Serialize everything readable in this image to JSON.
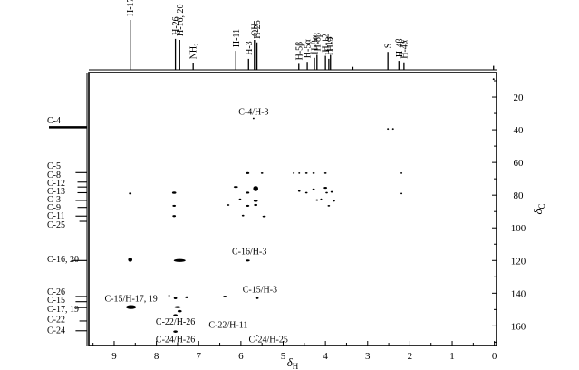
{
  "chart_data": {
    "type": "scatter",
    "title": "",
    "xlabel": "δH",
    "ylabel": "δC",
    "xlim": [
      9.6,
      -0.05
    ],
    "ylim": [
      5,
      172
    ],
    "x_ticks": [
      9,
      8,
      7,
      6,
      5,
      4,
      3,
      2,
      1,
      0
    ],
    "y_ticks": [
      20,
      40,
      60,
      80,
      100,
      120,
      140,
      160
    ],
    "grid": false,
    "h_projection_peaks": [
      {
        "x": 8.62,
        "h": 1.0,
        "label": "H-17, 19"
      },
      {
        "x": 7.55,
        "h": 0.62,
        "label": "H-26"
      },
      {
        "x": 7.45,
        "h": 0.6,
        "label": "H-16, 20"
      },
      {
        "x": 7.13,
        "h": 0.14,
        "label": "NH₂"
      },
      {
        "x": 6.12,
        "h": 0.38,
        "label": "H-11"
      },
      {
        "x": 5.82,
        "h": 0.22,
        "label": "H-3"
      },
      {
        "x": 5.68,
        "h": 0.6,
        "label": "OH"
      },
      {
        "x": 5.62,
        "h": 0.55,
        "label": "H-25"
      },
      {
        "x": 4.63,
        "h": 0.12,
        "label": "H-5β"
      },
      {
        "x": 4.43,
        "h": 0.16,
        "label": "H-5α"
      },
      {
        "x": 4.26,
        "h": 0.24,
        "label": "H-8α"
      },
      {
        "x": 4.2,
        "h": 0.3,
        "label": "H-8β"
      },
      {
        "x": 4.0,
        "h": 0.28,
        "label": "H-12"
      },
      {
        "x": 3.92,
        "h": 0.22,
        "label": "H-13"
      },
      {
        "x": 3.88,
        "h": 0.3,
        "label": "H-9"
      },
      {
        "x": 3.35,
        "h": 0.06,
        "label": ""
      },
      {
        "x": 2.52,
        "h": 0.36,
        "label": "S"
      },
      {
        "x": 2.26,
        "h": 0.18,
        "label": "H-4β"
      },
      {
        "x": 2.14,
        "h": 0.15,
        "label": "H-4α"
      },
      {
        "x": 0.02,
        "h": 0.08,
        "label": ""
      }
    ],
    "c_projection": [
      {
        "y": 38.5,
        "w": 1.0,
        "label": "C-4"
      },
      {
        "y": 66.2,
        "w": 0.3,
        "label": "C-5"
      },
      {
        "y": 72.0,
        "w": 0.25,
        "label": "C-8"
      },
      {
        "y": 75.0,
        "w": 0.25,
        "label": "C-12"
      },
      {
        "y": 78.5,
        "w": 0.25,
        "label": "C-13"
      },
      {
        "y": 83.2,
        "w": 0.3,
        "label": "C-3"
      },
      {
        "y": 87.5,
        "w": 0.25,
        "label": "C-9"
      },
      {
        "y": 92.8,
        "w": 0.3,
        "label": "C-11"
      },
      {
        "y": 120.0,
        "w": 0.4,
        "label": "C-16, 20"
      },
      {
        "y": 142.0,
        "w": 0.3,
        "label": "C-26"
      },
      {
        "y": 145.2,
        "w": 0.3,
        "label": "C-15"
      },
      {
        "y": 148.8,
        "w": 0.3,
        "label": "C-17, 19"
      },
      {
        "y": 163.0,
        "w": 0.3,
        "label": "C-24"
      },
      {
        "y": 157.0,
        "w": 0.2,
        "label": "C-22"
      },
      {
        "y": 96.0,
        "w": 0.2,
        "label": "C-25"
      }
    ],
    "c_labels": [
      {
        "text": "C-4",
        "y": 34
      },
      {
        "text": "C-5",
        "y": 62
      },
      {
        "text": "C-8",
        "y": 67.5
      },
      {
        "text": "C-12",
        "y": 72.5
      },
      {
        "text": "C-13",
        "y": 77.5
      },
      {
        "text": "C-3",
        "y": 82.5
      },
      {
        "text": "C-9",
        "y": 87.5
      },
      {
        "text": "C-11",
        "y": 92.5
      },
      {
        "text": "C-25",
        "y": 98
      },
      {
        "text": "C-16, 20",
        "y": 119
      },
      {
        "text": "C-26",
        "y": 139
      },
      {
        "text": "C-15",
        "y": 144
      },
      {
        "text": "C-17, 19",
        "y": 149.5
      },
      {
        "text": "C-22",
        "y": 156
      },
      {
        "text": "C-24",
        "y": 162.5
      }
    ],
    "cross_peaks": [
      {
        "x": 8.6,
        "y": 148.5,
        "rx": 0.12,
        "ry": 1.2
      },
      {
        "x": 8.62,
        "y": 119.5,
        "rx": 0.05,
        "ry": 1.3
      },
      {
        "x": 8.62,
        "y": 79.0,
        "rx": 0.03,
        "ry": 0.6
      },
      {
        "x": 7.7,
        "y": 141.5,
        "rx": 0.02,
        "ry": 0.5
      },
      {
        "x": 7.55,
        "y": 143.0,
        "rx": 0.04,
        "ry": 0.7
      },
      {
        "x": 7.55,
        "y": 153.5,
        "rx": 0.05,
        "ry": 0.7
      },
      {
        "x": 7.55,
        "y": 163.5,
        "rx": 0.05,
        "ry": 0.7
      },
      {
        "x": 7.45,
        "y": 120.0,
        "rx": 0.14,
        "ry": 0.9
      },
      {
        "x": 7.58,
        "y": 78.5,
        "rx": 0.05,
        "ry": 0.7
      },
      {
        "x": 7.58,
        "y": 86.5,
        "rx": 0.04,
        "ry": 0.6
      },
      {
        "x": 7.58,
        "y": 92.8,
        "rx": 0.04,
        "ry": 0.6
      },
      {
        "x": 7.45,
        "y": 151.0,
        "rx": 0.05,
        "ry": 0.7
      },
      {
        "x": 7.5,
        "y": 148.5,
        "rx": 0.08,
        "ry": 0.6
      },
      {
        "x": 7.28,
        "y": 142.5,
        "rx": 0.04,
        "ry": 0.6
      },
      {
        "x": 6.38,
        "y": 142.0,
        "rx": 0.04,
        "ry": 0.5
      },
      {
        "x": 6.3,
        "y": 86.0,
        "rx": 0.03,
        "ry": 0.5
      },
      {
        "x": 6.12,
        "y": 75.0,
        "rx": 0.05,
        "ry": 0.6
      },
      {
        "x": 6.02,
        "y": 82.5,
        "rx": 0.03,
        "ry": 0.5
      },
      {
        "x": 5.95,
        "y": 92.5,
        "rx": 0.03,
        "ry": 0.5
      },
      {
        "x": 5.84,
        "y": 66.5,
        "rx": 0.04,
        "ry": 0.6
      },
      {
        "x": 5.84,
        "y": 78.5,
        "rx": 0.04,
        "ry": 0.6
      },
      {
        "x": 5.84,
        "y": 86.5,
        "rx": 0.04,
        "ry": 0.6
      },
      {
        "x": 5.84,
        "y": 120.0,
        "rx": 0.05,
        "ry": 0.6
      },
      {
        "x": 5.65,
        "y": 76.0,
        "rx": 0.06,
        "ry": 1.6
      },
      {
        "x": 5.65,
        "y": 83.5,
        "rx": 0.05,
        "ry": 0.6
      },
      {
        "x": 5.65,
        "y": 86.0,
        "rx": 0.04,
        "ry": 0.6
      },
      {
        "x": 5.62,
        "y": 143.0,
        "rx": 0.04,
        "ry": 0.6
      },
      {
        "x": 5.62,
        "y": 166.0,
        "rx": 0.03,
        "ry": 0.5
      },
      {
        "x": 5.5,
        "y": 66.5,
        "rx": 0.03,
        "ry": 0.5
      },
      {
        "x": 5.45,
        "y": 93.0,
        "rx": 0.04,
        "ry": 0.5
      },
      {
        "x": 5.7,
        "y": 33.0,
        "rx": 0.02,
        "ry": 0.4
      },
      {
        "x": 4.75,
        "y": 66.5,
        "rx": 0.02,
        "ry": 0.5
      },
      {
        "x": 4.62,
        "y": 66.5,
        "rx": 0.02,
        "ry": 0.5
      },
      {
        "x": 4.62,
        "y": 77.5,
        "rx": 0.03,
        "ry": 0.5
      },
      {
        "x": 4.45,
        "y": 66.5,
        "rx": 0.03,
        "ry": 0.5
      },
      {
        "x": 4.45,
        "y": 78.5,
        "rx": 0.03,
        "ry": 0.5
      },
      {
        "x": 4.28,
        "y": 66.5,
        "rx": 0.03,
        "ry": 0.5
      },
      {
        "x": 4.28,
        "y": 76.5,
        "rx": 0.03,
        "ry": 0.6
      },
      {
        "x": 4.2,
        "y": 83.0,
        "rx": 0.03,
        "ry": 0.5
      },
      {
        "x": 4.1,
        "y": 82.5,
        "rx": 0.02,
        "ry": 0.5
      },
      {
        "x": 4.0,
        "y": 66.5,
        "rx": 0.03,
        "ry": 0.5
      },
      {
        "x": 4.0,
        "y": 75.5,
        "rx": 0.04,
        "ry": 0.6
      },
      {
        "x": 3.97,
        "y": 78.5,
        "rx": 0.03,
        "ry": 0.5
      },
      {
        "x": 3.92,
        "y": 86.5,
        "rx": 0.03,
        "ry": 0.5
      },
      {
        "x": 3.85,
        "y": 78.0,
        "rx": 0.03,
        "ry": 0.5
      },
      {
        "x": 3.8,
        "y": 83.5,
        "rx": 0.03,
        "ry": 0.5
      },
      {
        "x": 2.52,
        "y": 39.5,
        "rx": 0.02,
        "ry": 0.4
      },
      {
        "x": 2.4,
        "y": 39.5,
        "rx": 0.02,
        "ry": 0.4
      },
      {
        "x": 2.2,
        "y": 66.5,
        "rx": 0.015,
        "ry": 0.4
      },
      {
        "x": 2.2,
        "y": 79.0,
        "rx": 0.015,
        "ry": 0.4
      },
      {
        "x": 0.02,
        "y": 9.0,
        "rx": 0.015,
        "ry": 0.4
      }
    ],
    "annotations": [
      {
        "text": "C-4/H-3",
        "x": 5.7,
        "y": 29
      },
      {
        "text": "C-16/H-3",
        "x": 5.8,
        "y": 114.5
      },
      {
        "text": "C-15/H-3",
        "x": 5.55,
        "y": 138
      },
      {
        "text": "C-15/H-17, 19",
        "x": 8.6,
        "y": 143.5
      },
      {
        "text": "C-22/H-26",
        "x": 7.55,
        "y": 157.5
      },
      {
        "text": "C-22/H-11",
        "x": 6.3,
        "y": 159.5
      },
      {
        "text": "C-24/H-26",
        "x": 7.55,
        "y": 168.5
      },
      {
        "text": "C-24/H-25",
        "x": 5.35,
        "y": 168.5
      }
    ]
  }
}
